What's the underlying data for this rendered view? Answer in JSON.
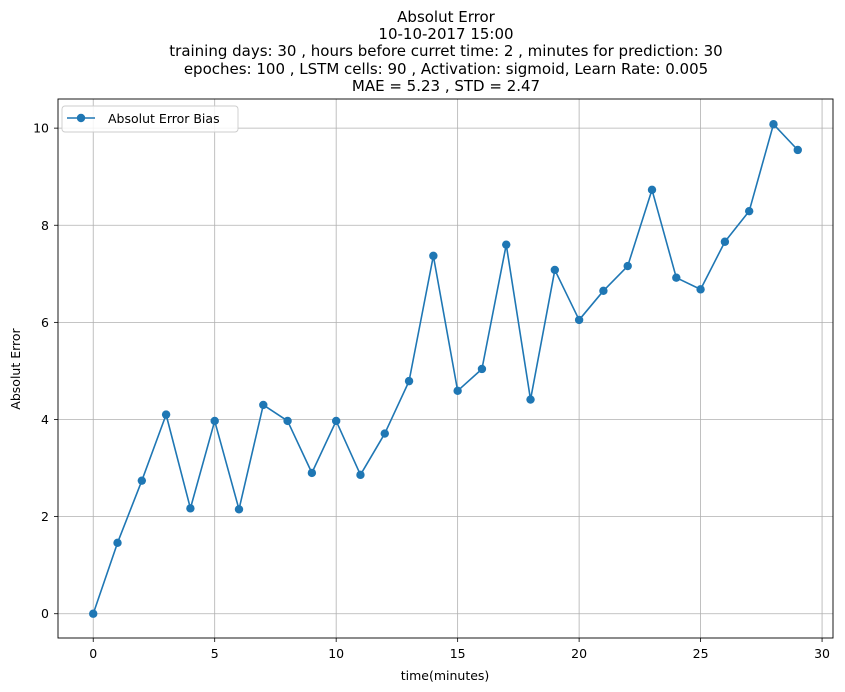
{
  "chart_data": {
    "type": "line",
    "title_lines": [
      "Absolut Error",
      "10-10-2017 15:00",
      "training days: 30 , hours before curret time: 2 , minutes for prediction: 30",
      "epoches: 100 , LSTM cells: 90 , Activation: sigmoid, Learn Rate: 0.005",
      "MAE = 5.23 , STD = 2.47"
    ],
    "xlabel": "time(minutes)",
    "ylabel": "Absolut Error",
    "xlim": [
      -1.45,
      30.45
    ],
    "ylim": [
      -0.5,
      10.6
    ],
    "xticks": [
      0,
      5,
      10,
      15,
      20,
      25,
      30
    ],
    "yticks": [
      0,
      2,
      4,
      6,
      8,
      10
    ],
    "grid": true,
    "legend_position": "upper-left",
    "series": [
      {
        "name": "Absolut Error Bias",
        "color": "#1f77b4",
        "marker": "circle",
        "x": [
          0,
          1,
          2,
          3,
          4,
          5,
          6,
          7,
          8,
          9,
          10,
          11,
          12,
          13,
          14,
          15,
          16,
          17,
          18,
          19,
          20,
          21,
          22,
          23,
          24,
          25,
          26,
          27,
          28,
          29
        ],
        "y": [
          0.0,
          1.46,
          2.74,
          4.1,
          2.17,
          3.97,
          2.15,
          4.3,
          3.97,
          2.9,
          3.97,
          2.86,
          3.71,
          4.79,
          7.37,
          4.59,
          5.04,
          7.6,
          4.41,
          7.08,
          6.05,
          6.65,
          7.16,
          8.73,
          6.92,
          6.68,
          7.66,
          8.29,
          10.08,
          9.55
        ]
      }
    ]
  },
  "colors": {
    "grid": "#b0b0b0",
    "axes": "#000000",
    "legend_border": "#cccccc"
  }
}
